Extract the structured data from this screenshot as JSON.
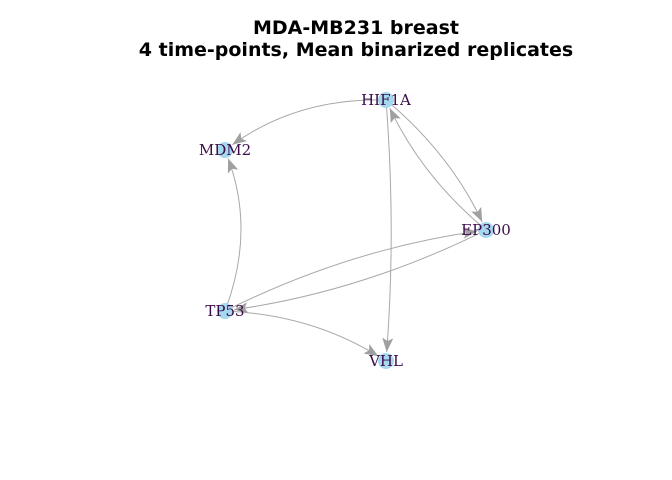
{
  "title": {
    "line1": "MDA-MB231 breast",
    "line2": "4 time-points, Mean binarized replicates"
  },
  "colors": {
    "node_fill": "#a6d8ee",
    "label": "#3b0a4a",
    "edge": "#a8a8a8",
    "arrow": "#a0a0a0"
  },
  "nodes": [
    {
      "id": "HIF1A",
      "label": "HIF1A"
    },
    {
      "id": "MDM2",
      "label": "MDM2"
    },
    {
      "id": "EP300",
      "label": "EP300"
    },
    {
      "id": "TP53",
      "label": "TP53"
    },
    {
      "id": "VHL",
      "label": "VHL"
    }
  ],
  "edges": [
    {
      "from": "HIF1A",
      "to": "MDM2"
    },
    {
      "from": "HIF1A",
      "to": "EP300"
    },
    {
      "from": "EP300",
      "to": "HIF1A"
    },
    {
      "from": "HIF1A",
      "to": "VHL"
    },
    {
      "from": "TP53",
      "to": "MDM2"
    },
    {
      "from": "TP53",
      "to": "EP300"
    },
    {
      "from": "EP300",
      "to": "TP53"
    },
    {
      "from": "TP53",
      "to": "VHL"
    }
  ]
}
